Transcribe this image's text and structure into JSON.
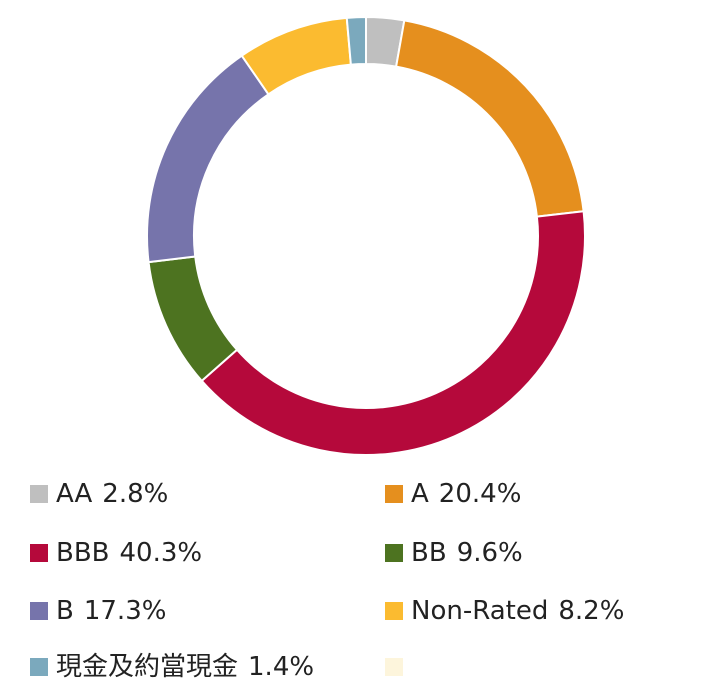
{
  "chart_data": {
    "type": "donut",
    "categories": [
      "AA",
      "A",
      "BBB",
      "BB",
      "B",
      "Non-Rated",
      "現金及約當現金",
      null
    ],
    "values": [
      2.8,
      20.4,
      40.3,
      9.6,
      17.3,
      8.2,
      1.4,
      0
    ],
    "value_labels": [
      "2.8%",
      "20.4%",
      "40.3%",
      "9.6%",
      "17.3%",
      "8.2%",
      "1.4%",
      null
    ],
    "colors": [
      "#bfbfbf",
      "#e58f1e",
      "#b5093b",
      "#4d7320",
      "#7674ab",
      "#fbbb30",
      "#7ba9bd",
      "#fdf5dc"
    ],
    "legend": "bottom"
  }
}
